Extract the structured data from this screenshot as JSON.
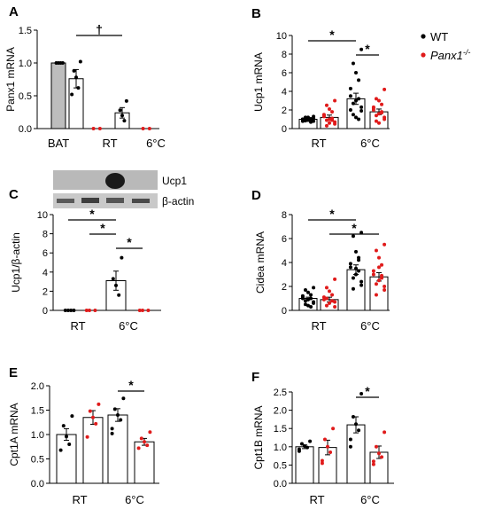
{
  "figure": {
    "legend": {
      "items": [
        {
          "label": "WT",
          "color": "#000000"
        },
        {
          "label": "Panx1",
          "superscript": "-/-",
          "color": "#e01b1b"
        }
      ]
    },
    "blot": {
      "labels": [
        "Ucp1",
        "β-actin"
      ]
    }
  },
  "chart_data": [
    {
      "panel": "A",
      "type": "bar",
      "ylabel": "Panx1 mRNA",
      "ylim": [
        0,
        1.5
      ],
      "yticks": [
        "0.0",
        "0.5",
        "1.0",
        "1.5"
      ],
      "groups": [
        "BAT",
        "RT",
        "6°C"
      ],
      "bars": [
        {
          "group": "BAT",
          "genotype": "gray",
          "value": 1.0,
          "sem": 0,
          "points": [
            1.0,
            1.0,
            1.0,
            1.0
          ]
        },
        {
          "group": "RT",
          "genotype": "WT",
          "value": 0.76,
          "sem": 0.14,
          "points": [
            1.02,
            0.88,
            0.78,
            0.62,
            0.52
          ]
        },
        {
          "group": "RT",
          "genotype": "Panx1-/-",
          "value": 0.0,
          "sem": 0,
          "points": [
            0.0,
            0.0
          ]
        },
        {
          "group": "6°C",
          "genotype": "WT",
          "value": 0.24,
          "sem": 0.08,
          "points": [
            0.42,
            0.28,
            0.2,
            0.12
          ]
        },
        {
          "group": "6°C",
          "genotype": "Panx1-/-",
          "value": 0.0,
          "sem": 0,
          "points": [
            0.0,
            0.0
          ]
        }
      ],
      "annotations": [
        {
          "text": "†",
          "from": "RT-WT",
          "to": "6°C-WT"
        }
      ]
    },
    {
      "panel": "B",
      "type": "bar",
      "ylabel": "Ucp1 mRNA",
      "ylim": [
        0,
        10
      ],
      "yticks": [
        "0",
        "2",
        "4",
        "6",
        "8",
        "10"
      ],
      "groups": [
        "RT",
        "6°C"
      ],
      "bars": [
        {
          "group": "RT",
          "genotype": "WT",
          "value": 1.0,
          "sem": 0.1,
          "points": [
            1.3,
            1.2,
            1.1,
            1.05,
            1.0,
            1.0,
            0.95,
            0.9,
            0.85,
            0.8,
            1.1,
            0.9,
            1.2,
            0.7,
            1.0,
            0.8
          ]
        },
        {
          "group": "RT",
          "genotype": "Panx1-/-",
          "value": 1.2,
          "sem": 0.25,
          "points": [
            3.0,
            2.5,
            2.1,
            1.8,
            1.5,
            1.3,
            1.1,
            1.0,
            0.9,
            0.7,
            0.5,
            0.3,
            0.6,
            0.9,
            1.4
          ]
        },
        {
          "group": "6°C",
          "genotype": "WT",
          "value": 3.2,
          "sem": 0.6,
          "points": [
            8.5,
            7.0,
            6.0,
            5.2,
            4.3,
            3.5,
            3.2,
            3.0,
            2.7,
            2.3,
            1.9,
            1.5,
            1.2,
            1.0,
            2.0
          ]
        },
        {
          "group": "6°C",
          "genotype": "Panx1-/-",
          "value": 1.8,
          "sem": 0.3,
          "points": [
            4.2,
            3.2,
            3.0,
            2.6,
            2.3,
            2.0,
            1.8,
            1.6,
            1.4,
            1.2,
            1.0,
            0.8,
            0.6,
            1.7,
            2.2
          ]
        }
      ],
      "annotations": [
        {
          "text": "*",
          "from": "RT-WT",
          "to": "6°C-WT"
        },
        {
          "text": "*",
          "from": "6°C-WT",
          "to": "6°C-Panx1-/-"
        }
      ]
    },
    {
      "panel": "C",
      "type": "bar",
      "ylabel": "Ucp1/β-actin",
      "ylim": [
        0,
        10
      ],
      "yticks": [
        "0",
        "2",
        "4",
        "6",
        "8",
        "10"
      ],
      "groups": [
        "RT",
        "6°C"
      ],
      "bars": [
        {
          "group": "RT",
          "genotype": "WT",
          "value": 0.0,
          "sem": 0,
          "points": [
            0.0,
            0.0,
            0.0,
            0.0
          ]
        },
        {
          "group": "RT",
          "genotype": "Panx1-/-",
          "value": 0.0,
          "sem": 0,
          "points": [
            0.0,
            0.0,
            0.0
          ]
        },
        {
          "group": "6°C",
          "genotype": "WT",
          "value": 3.1,
          "sem": 1.0,
          "points": [
            5.5,
            3.3,
            2.6,
            1.6
          ]
        },
        {
          "group": "6°C",
          "genotype": "Panx1-/-",
          "value": 0.0,
          "sem": 0,
          "points": [
            0.0,
            0.0,
            0.0
          ]
        }
      ],
      "annotations": [
        {
          "text": "*",
          "from": "RT-WT",
          "to": "6°C-WT"
        },
        {
          "text": "*",
          "from": "RT-Panx1-/-",
          "to": "6°C-WT"
        },
        {
          "text": "*",
          "from": "6°C-WT",
          "to": "6°C-Panx1-/-"
        }
      ]
    },
    {
      "panel": "D",
      "type": "bar",
      "ylabel": "Cidea mRNA",
      "ylim": [
        0,
        8
      ],
      "yticks": [
        "0",
        "2",
        "4",
        "6",
        "8"
      ],
      "groups": [
        "RT",
        "6°C"
      ],
      "bars": [
        {
          "group": "RT",
          "genotype": "WT",
          "value": 1.0,
          "sem": 0.1,
          "points": [
            1.9,
            1.7,
            1.5,
            1.3,
            1.2,
            1.1,
            1.0,
            0.9,
            0.8,
            0.7,
            0.6,
            0.5,
            0.4,
            0.3,
            1.0
          ]
        },
        {
          "group": "RT",
          "genotype": "Panx1-/-",
          "value": 0.9,
          "sem": 0.2,
          "points": [
            2.6,
            1.9,
            1.6,
            1.3,
            1.1,
            0.9,
            0.8,
            0.6,
            0.4,
            0.3,
            0.7,
            1.0
          ]
        },
        {
          "group": "6°C",
          "genotype": "WT",
          "value": 3.4,
          "sem": 0.4,
          "points": [
            6.5,
            6.2,
            4.9,
            4.2,
            3.9,
            3.6,
            3.3,
            3.0,
            2.7,
            2.4,
            2.1,
            1.8,
            3.5,
            4.4
          ]
        },
        {
          "group": "6°C",
          "genotype": "Panx1-/-",
          "value": 2.8,
          "sem": 0.35,
          "points": [
            5.5,
            5.0,
            4.4,
            3.8,
            3.3,
            3.0,
            2.7,
            2.5,
            2.2,
            2.0,
            1.7,
            1.3,
            3.6,
            2.9
          ]
        }
      ],
      "annotations": [
        {
          "text": "*",
          "from": "RT-WT",
          "to": "6°C-WT"
        },
        {
          "text": "*",
          "from": "RT-Panx1-/-",
          "to": "6°C-Panx1-/-"
        }
      ]
    },
    {
      "panel": "E",
      "type": "bar",
      "ylabel": "Cpt1A mRNA",
      "ylim": [
        0,
        2.0
      ],
      "yticks": [
        "0.0",
        "0.5",
        "1.0",
        "1.5",
        "2.0"
      ],
      "groups": [
        "RT",
        "6°C"
      ],
      "bars": [
        {
          "group": "RT",
          "genotype": "WT",
          "value": 1.0,
          "sem": 0.12,
          "points": [
            1.38,
            1.18,
            0.96,
            0.8,
            0.68
          ]
        },
        {
          "group": "RT",
          "genotype": "Panx1-/-",
          "value": 1.35,
          "sem": 0.14,
          "points": [
            1.62,
            1.48,
            1.35,
            1.22,
            0.95
          ]
        },
        {
          "group": "6°C",
          "genotype": "WT",
          "value": 1.4,
          "sem": 0.13,
          "points": [
            1.74,
            1.52,
            1.4,
            1.3,
            1.12,
            1.02
          ]
        },
        {
          "group": "6°C",
          "genotype": "Panx1-/-",
          "value": 0.85,
          "sem": 0.07,
          "points": [
            1.05,
            0.92,
            0.85,
            0.78,
            0.72
          ]
        }
      ],
      "annotations": [
        {
          "text": "*",
          "from": "6°C-WT",
          "to": "6°C-Panx1-/-"
        }
      ]
    },
    {
      "panel": "F",
      "type": "bar",
      "ylabel": "Cpt1B mRNA",
      "ylim": [
        0,
        2.5
      ],
      "yticks": [
        "0.0",
        "0.5",
        "1.0",
        "1.5",
        "2.0",
        "2.5"
      ],
      "groups": [
        "RT",
        "6°C"
      ],
      "bars": [
        {
          "group": "RT",
          "genotype": "WT",
          "value": 1.0,
          "sem": 0.05,
          "points": [
            1.15,
            1.08,
            1.02,
            0.98,
            0.93,
            0.88
          ]
        },
        {
          "group": "RT",
          "genotype": "Panx1-/-",
          "value": 0.98,
          "sem": 0.2,
          "points": [
            1.5,
            1.2,
            1.0,
            0.85,
            0.62,
            0.55
          ]
        },
        {
          "group": "6°C",
          "genotype": "WT",
          "value": 1.6,
          "sem": 0.22,
          "points": [
            2.45,
            1.82,
            1.62,
            1.45,
            1.2,
            1.0
          ]
        },
        {
          "group": "6°C",
          "genotype": "Panx1-/-",
          "value": 0.85,
          "sem": 0.17,
          "points": [
            1.4,
            1.0,
            0.82,
            0.72,
            0.6,
            0.52
          ]
        }
      ],
      "annotations": [
        {
          "text": "*",
          "from": "6°C-WT",
          "to": "6°C-Panx1-/-"
        }
      ]
    }
  ]
}
